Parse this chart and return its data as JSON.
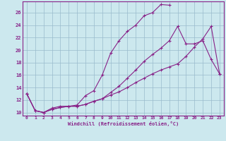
{
  "xlabel": "Windchill (Refroidissement éolien,°C)",
  "bg_color": "#cce8ee",
  "line_color": "#882288",
  "grid_color": "#99bbcc",
  "xlim": [
    -0.5,
    23.5
  ],
  "ylim": [
    9.5,
    27.8
  ],
  "xticks": [
    0,
    1,
    2,
    3,
    4,
    5,
    6,
    7,
    8,
    9,
    10,
    11,
    12,
    13,
    14,
    15,
    16,
    17,
    18,
    19,
    20,
    21,
    22,
    23
  ],
  "yticks": [
    10,
    12,
    14,
    16,
    18,
    20,
    22,
    24,
    26
  ],
  "line1_x": [
    0,
    1,
    2,
    3,
    4,
    5,
    6,
    7,
    8,
    9,
    10,
    11,
    12,
    13,
    14,
    15,
    16,
    17
  ],
  "line1_y": [
    13.0,
    10.3,
    10.0,
    10.7,
    11.0,
    11.0,
    11.2,
    12.7,
    13.5,
    16.0,
    19.5,
    21.5,
    23.0,
    24.0,
    25.5,
    26.0,
    27.3,
    27.2
  ],
  "line2_x": [
    0,
    1,
    2,
    3,
    4,
    5,
    6,
    7,
    8,
    9,
    10,
    11,
    12,
    13,
    14,
    15,
    16,
    17,
    18,
    19,
    20,
    21,
    22,
    23
  ],
  "line2_y": [
    13.0,
    10.3,
    10.0,
    10.5,
    10.8,
    11.0,
    11.0,
    11.3,
    11.8,
    12.2,
    12.8,
    13.3,
    14.0,
    14.8,
    15.5,
    16.2,
    16.8,
    17.3,
    17.8,
    19.0,
    20.5,
    21.8,
    23.8,
    16.2
  ],
  "line3_x": [
    0,
    1,
    2,
    3,
    4,
    5,
    6,
    7,
    8,
    9,
    10,
    11,
    12,
    13,
    14,
    15,
    16,
    17,
    18,
    19,
    20,
    21,
    22,
    23
  ],
  "line3_y": [
    13.0,
    10.3,
    10.0,
    10.5,
    10.8,
    11.0,
    11.0,
    11.3,
    11.8,
    12.2,
    13.2,
    14.2,
    15.5,
    16.8,
    18.2,
    19.3,
    20.3,
    21.5,
    23.8,
    21.0,
    21.0,
    21.5,
    18.5,
    16.2
  ]
}
